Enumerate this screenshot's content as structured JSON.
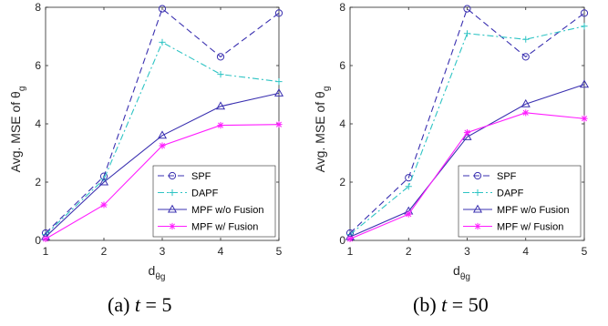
{
  "chart_data": [
    {
      "type": "line",
      "x": [
        1,
        2,
        3,
        4,
        5
      ],
      "xlabel_main": "d",
      "xlabel_sub": "θg",
      "ylabel_main": "Avg. MSE of θ",
      "ylabel_sub": "g",
      "xlim": [
        1,
        5
      ],
      "ylim": [
        0,
        8
      ],
      "xticks": [
        "1",
        "2",
        "3",
        "4",
        "5"
      ],
      "yticks": [
        "0",
        "2",
        "4",
        "6",
        "8"
      ],
      "grid": false,
      "legend_position": "bottom-right",
      "series": [
        {
          "name": "SPF",
          "values": [
            0.25,
            2.2,
            7.95,
            6.3,
            7.8
          ],
          "color": "#3a30b0",
          "dash": "dashed",
          "marker": "circle"
        },
        {
          "name": "DAPF",
          "values": [
            0.2,
            2.1,
            6.8,
            5.7,
            5.45
          ],
          "color": "#2ec4c4",
          "dash": "dashdot",
          "marker": "plus"
        },
        {
          "name": "MPF w/o Fusion",
          "values": [
            0.12,
            2.0,
            3.6,
            4.6,
            5.05
          ],
          "color": "#3a30b0",
          "dash": "solid",
          "marker": "triangle"
        },
        {
          "name": "MPF w/ Fusion",
          "values": [
            0.05,
            1.22,
            3.25,
            3.95,
            3.98
          ],
          "color": "#ff1cff",
          "dash": "solid",
          "marker": "star"
        }
      ],
      "caption_prefix": "(a) ",
      "caption_var": "t",
      "caption_suffix": " = 5"
    },
    {
      "type": "line",
      "x": [
        1,
        2,
        3,
        4,
        5
      ],
      "xlabel_main": "d",
      "xlabel_sub": "θg",
      "ylabel_main": "Avg. MSE of θ",
      "ylabel_sub": "g",
      "xlim": [
        1,
        5
      ],
      "ylim": [
        0,
        8
      ],
      "xticks": [
        "1",
        "2",
        "3",
        "4",
        "5"
      ],
      "yticks": [
        "0",
        "2",
        "4",
        "6",
        "8"
      ],
      "grid": false,
      "legend_position": "bottom-right",
      "series": [
        {
          "name": "SPF",
          "values": [
            0.25,
            2.15,
            7.95,
            6.3,
            7.8
          ],
          "color": "#3a30b0",
          "dash": "dashed",
          "marker": "circle"
        },
        {
          "name": "DAPF",
          "values": [
            0.2,
            1.85,
            7.1,
            6.9,
            7.35
          ],
          "color": "#2ec4c4",
          "dash": "dashdot",
          "marker": "plus"
        },
        {
          "name": "MPF w/o Fusion",
          "values": [
            0.12,
            1.0,
            3.55,
            4.68,
            5.35
          ],
          "color": "#3a30b0",
          "dash": "solid",
          "marker": "triangle"
        },
        {
          "name": "MPF w/ Fusion",
          "values": [
            0.05,
            0.9,
            3.7,
            4.38,
            4.18
          ],
          "color": "#ff1cff",
          "dash": "solid",
          "marker": "star"
        }
      ],
      "caption_prefix": "(b) ",
      "caption_var": "t",
      "caption_suffix": " = 50"
    }
  ]
}
